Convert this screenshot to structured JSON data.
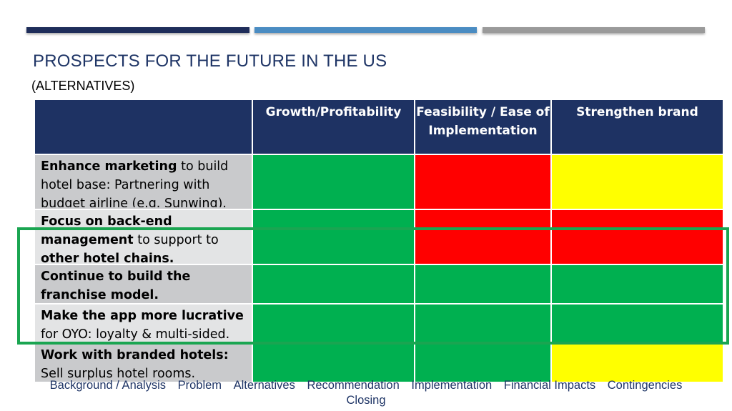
{
  "slide": {
    "title": "PROSPECTS FOR THE FUTURE IN THE US",
    "subtitle": "(ALTERNATIVES)"
  },
  "table": {
    "headers": [
      "",
      "Growth/Profitability",
      "Feasibility / Ease of Implementation",
      "Strengthen brand"
    ],
    "rows": [
      {
        "label_bold": "Enhance marketing",
        "label_rest": " to build hotel base: Partnering with budget airline (e.g. Sunwing).",
        "ratings": [
          "green",
          "red",
          "yellow"
        ]
      },
      {
        "label_bold": "Focus on back-end management",
        "label_rest": " to support to ",
        "label_bold2": "other hotel chains.",
        "ratings": [
          "green",
          "red",
          "red"
        ]
      },
      {
        "label_bold": "Continue to build the franchise model.",
        "label_rest": "",
        "ratings": [
          "green",
          "green",
          "green"
        ]
      },
      {
        "label_bold": "Make the app more lucrative",
        "label_rest": " for OYO: loyalty & multi-sided.",
        "ratings": [
          "green",
          "green",
          "green"
        ]
      },
      {
        "label_bold": "Work with branded hotels:",
        "label_rest": " Sell surplus hotel rooms.",
        "ratings": [
          "green",
          "green",
          "yellow"
        ]
      }
    ]
  },
  "colors": {
    "header": "#1e3263",
    "green": "#00b050",
    "red": "#ff0000",
    "yellow": "#ffff00",
    "highlight": "#1aa551"
  },
  "footer_nav": [
    "Background / Analysis",
    "Problem",
    "Alternatives",
    "Recommendation",
    "Implementation",
    "Financial Impacts",
    "Contingencies",
    "Closing"
  ]
}
